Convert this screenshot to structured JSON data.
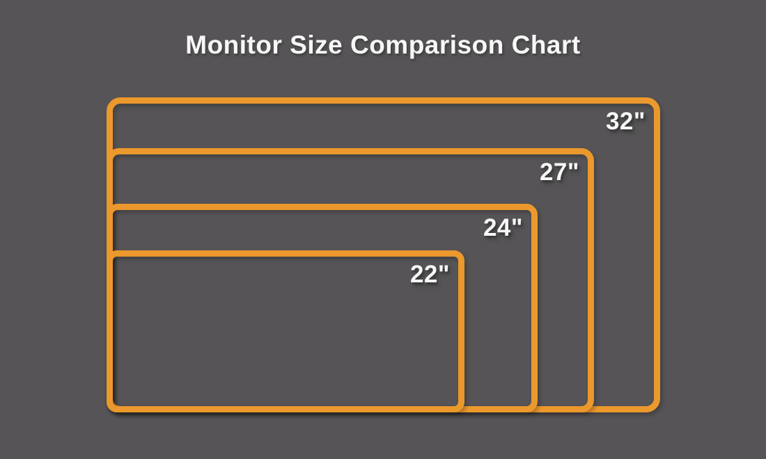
{
  "title": "Monitor Size Comparison Chart",
  "monitors": [
    {
      "label": "32\"",
      "diagonal_inches": 32
    },
    {
      "label": "27\"",
      "diagonal_inches": 27
    },
    {
      "label": "24\"",
      "diagonal_inches": 24
    },
    {
      "label": "22\"",
      "diagonal_inches": 22
    }
  ],
  "colors": {
    "background": "#565456",
    "frame": "#EB982D",
    "text": "#F7F7F7"
  },
  "chart_data": {
    "type": "area",
    "title": "Monitor Size Comparison Chart",
    "categories": [
      "32\"",
      "27\"",
      "24\"",
      "22\""
    ],
    "values": [
      32,
      27,
      24,
      22
    ],
    "unit": "inches (screen diagonal)",
    "legend": "none",
    "layout_hint": "nested rounded-rectangle outlines sharing a common bottom-left corner; each size label sits inside the top-right corner of its rectangle; larger diagonal = larger rectangle"
  }
}
